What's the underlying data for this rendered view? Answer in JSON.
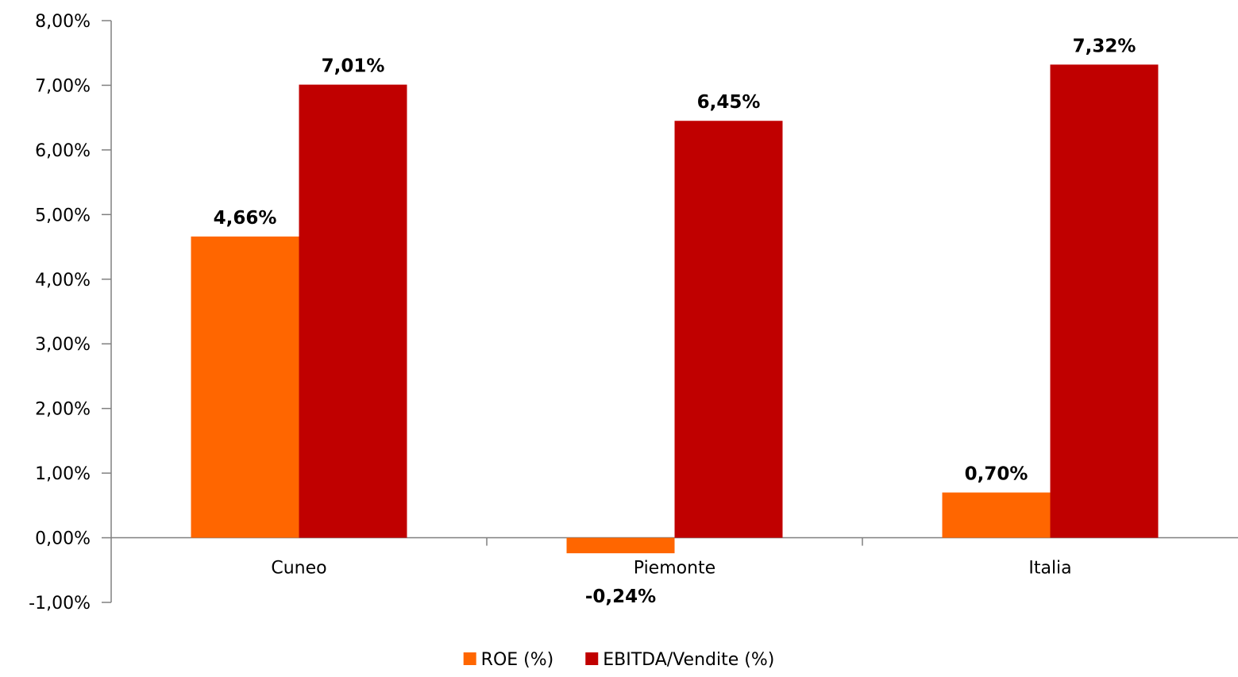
{
  "chart_data": {
    "type": "bar",
    "categories": [
      "Cuneo",
      "Piemonte",
      "Italia"
    ],
    "series": [
      {
        "name": "ROE (%)",
        "values": [
          4.66,
          -0.24,
          0.7
        ],
        "labels": [
          "4,66%",
          "-0,24%",
          "0,70%"
        ],
        "color": "#ff6600"
      },
      {
        "name": "EBITDA/Vendite (%)",
        "values": [
          7.01,
          6.45,
          7.32
        ],
        "labels": [
          "7,01%",
          "6,45%",
          "7,32%"
        ],
        "color": "#c00000"
      }
    ],
    "ylim": [
      -1,
      8
    ],
    "yticks": [
      8,
      7,
      6,
      5,
      4,
      3,
      2,
      1,
      0,
      -1
    ],
    "ytick_labels": [
      "8,00%",
      "7,00%",
      "6,00%",
      "5,00%",
      "4,00%",
      "3,00%",
      "2,00%",
      "1,00%",
      "0,00%",
      "-1,00%"
    ],
    "title": "",
    "xlabel": "",
    "ylabel": "",
    "grid": false,
    "legend_position": "bottom"
  }
}
